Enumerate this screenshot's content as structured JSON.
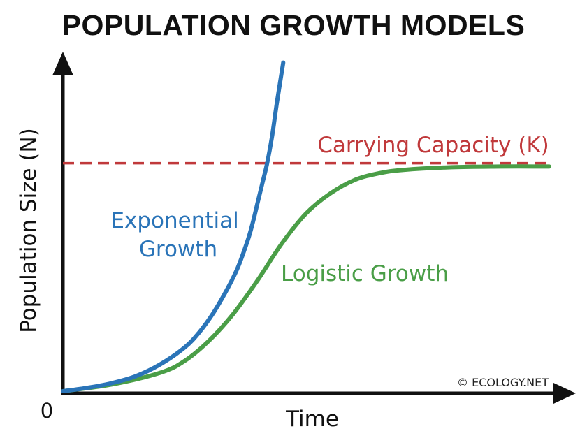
{
  "title": "POPULATION GROWTH MODELS",
  "watermark": "© ECOLOGY.NET",
  "chart_data": {
    "type": "line",
    "xlabel": "Time",
    "ylabel": "Population Size (N)",
    "origin_label": "0",
    "xlim": [
      0,
      100
    ],
    "ylim": [
      0,
      100
    ],
    "grid": false,
    "carrying_capacity": {
      "label": "Carrying Capacity (K)",
      "value": 68,
      "color": "#c0393b",
      "style": "dashed"
    },
    "series": [
      {
        "name": "Exponential Growth",
        "color": "#2a74b8",
        "x": [
          0,
          5,
          10,
          15,
          20,
          25,
          28,
          31,
          34,
          36,
          38,
          39,
          40,
          41,
          42,
          43,
          44,
          45.3
        ],
        "y": [
          0,
          1,
          2.4,
          4.5,
          8,
          13,
          17.5,
          23.5,
          31,
          37,
          45,
          50,
          56,
          62,
          68,
          76,
          86,
          98
        ]
      },
      {
        "name": "Logistic Growth",
        "color": "#4a9e47",
        "x": [
          0,
          10,
          20,
          25,
          30,
          35,
          40,
          45,
          50,
          55,
          60,
          65,
          70,
          80,
          90,
          100
        ],
        "y": [
          0,
          2,
          5.5,
          9,
          15,
          23,
          33,
          44,
          53,
          59,
          63,
          65,
          66,
          66.8,
          67,
          67
        ]
      }
    ]
  }
}
